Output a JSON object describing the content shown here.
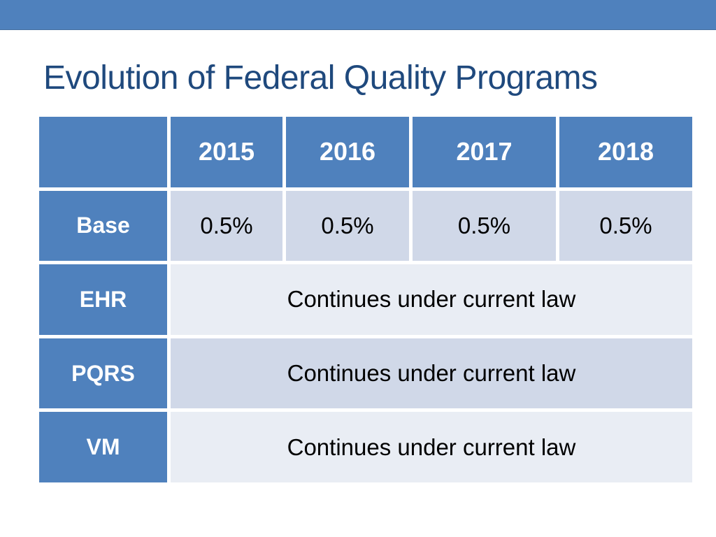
{
  "slide_title": "Evolution of Federal Quality Programs",
  "table": {
    "header": [
      "",
      "2015",
      "2016",
      "2017",
      "2018"
    ],
    "rows": [
      {
        "label": "Base",
        "values": [
          "0.5%",
          "0.5%",
          "0.5%",
          "0.5%"
        ]
      },
      {
        "label": "EHR",
        "merged_value": "Continues under current law"
      },
      {
        "label": "PQRS",
        "merged_value": "Continues under current law"
      },
      {
        "label": "VM",
        "merged_value": "Continues under current law"
      }
    ]
  },
  "colors": {
    "accent_blue": "#4F81BD",
    "band_dark": "#D0D8E8",
    "band_light": "#E9EDF4",
    "title_text": "#1F497D",
    "header_text": "#FFFFFF",
    "body_text": "#000000"
  }
}
